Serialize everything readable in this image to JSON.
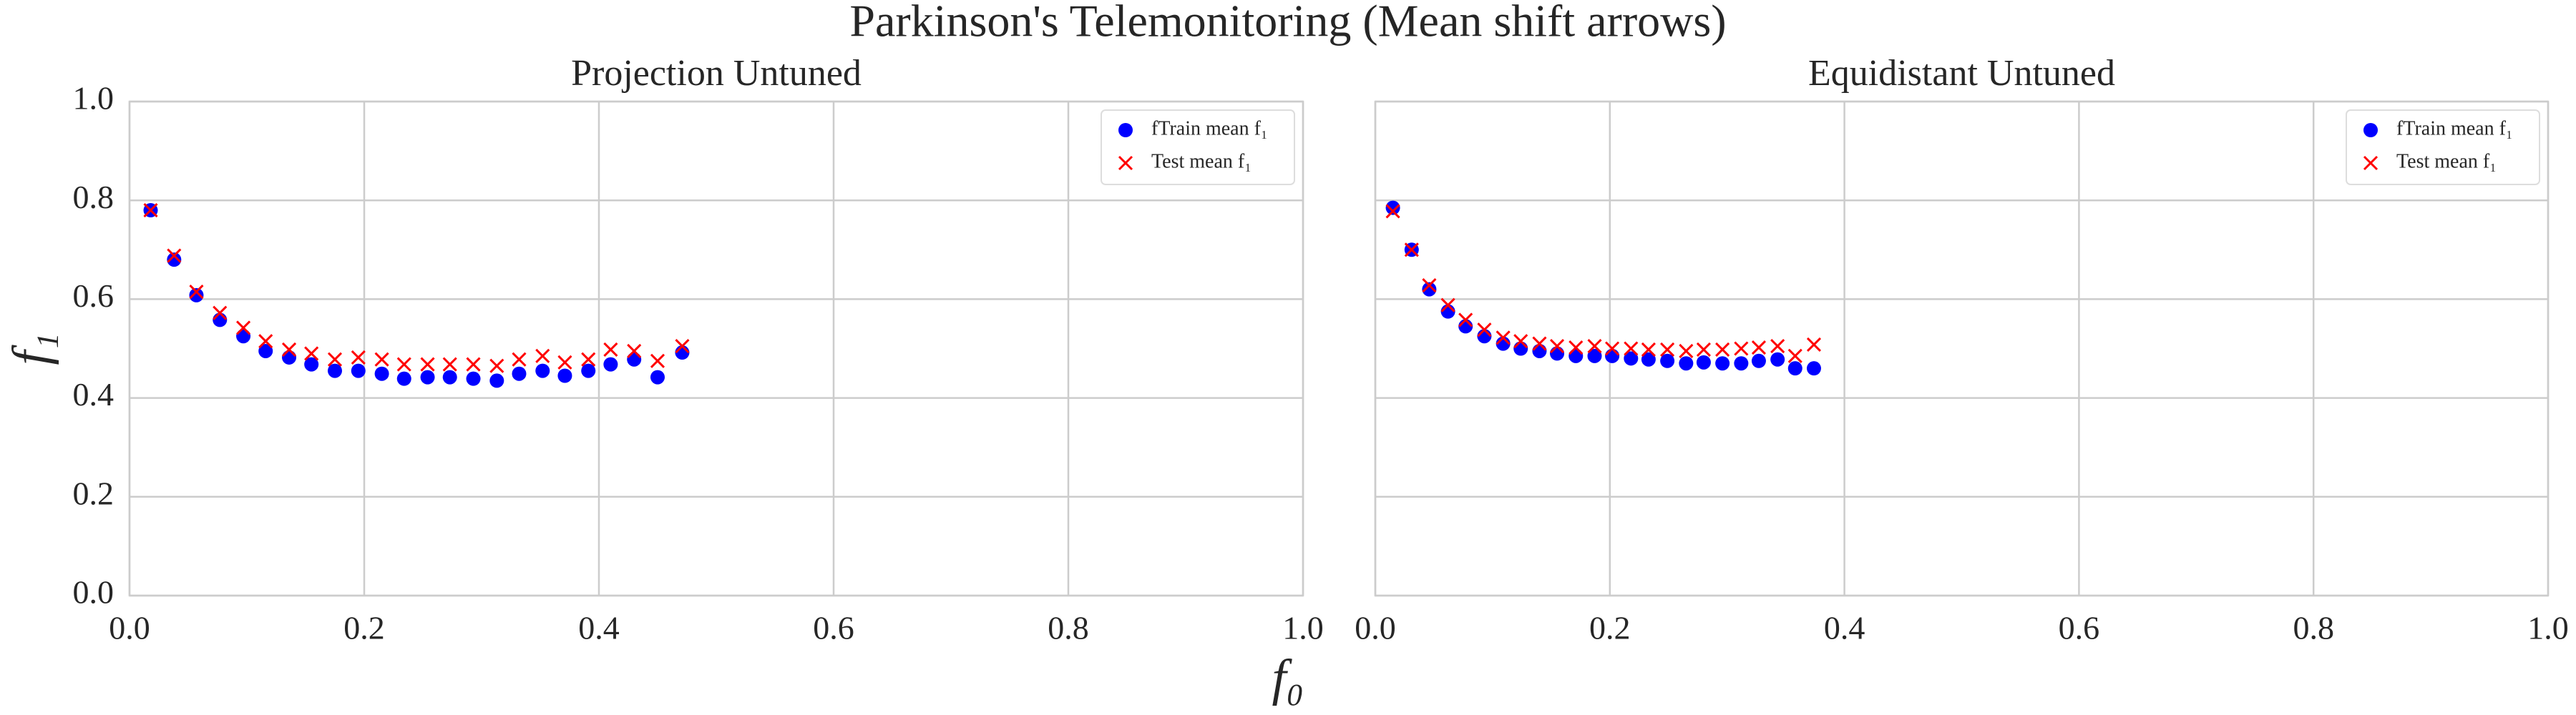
{
  "title": "Parkinson's Telemonitoring (Mean shift arrows)",
  "xlabel": "f₀",
  "ylabel": "f₁",
  "chart_data": [
    {
      "type": "scatter",
      "title": "Projection Untuned",
      "xlim": [
        0,
        1
      ],
      "ylim": [
        0,
        1
      ],
      "xticks": [
        {
          "value": 0,
          "label": "0.0"
        },
        0.2,
        0.4,
        0.6,
        0.8,
        {
          "value": 1,
          "label": "1.0"
        }
      ],
      "yticks": [
        {
          "value": 0,
          "label": "0.0"
        },
        0.2,
        0.4,
        0.6,
        0.8,
        {
          "value": 1,
          "label": "1.0"
        }
      ],
      "grid": true,
      "legend": "upper right",
      "x": [
        0.018,
        0.038,
        0.057,
        0.077,
        0.097,
        0.116,
        0.136,
        0.155,
        0.175,
        0.195,
        0.215,
        0.234,
        0.254,
        0.273,
        0.293,
        0.313,
        0.332,
        0.352,
        0.371,
        0.391,
        0.41,
        0.43,
        0.45,
        0.471
      ],
      "series": [
        {
          "name": "fTrain mean f₁",
          "color": "#0000ff",
          "marker": "o",
          "values": [
            0.78,
            0.68,
            0.608,
            0.558,
            0.525,
            0.495,
            0.482,
            0.468,
            0.455,
            0.455,
            0.449,
            0.439,
            0.442,
            0.442,
            0.439,
            0.435,
            0.449,
            0.455,
            0.445,
            0.455,
            0.468,
            0.478,
            0.442,
            0.492
          ]
        },
        {
          "name": "Test mean f₁",
          "color": "#ff0000",
          "marker": "x",
          "values": [
            0.78,
            0.688,
            0.615,
            0.572,
            0.542,
            0.515,
            0.498,
            0.49,
            0.478,
            0.482,
            0.478,
            0.468,
            0.468,
            0.468,
            0.468,
            0.465,
            0.478,
            0.485,
            0.472,
            0.478,
            0.498,
            0.495,
            0.475,
            0.505
          ]
        }
      ]
    },
    {
      "type": "scatter",
      "title": "Equidistant Untuned",
      "xlim": [
        0,
        1
      ],
      "ylim": [
        0,
        1
      ],
      "xticks": [
        {
          "value": 0,
          "label": "0.0"
        },
        0.2,
        0.4,
        0.6,
        0.8,
        {
          "value": 1,
          "label": "1.0"
        }
      ],
      "grid": true,
      "legend": "upper right",
      "x": [
        0.015,
        0.031,
        0.046,
        0.062,
        0.077,
        0.093,
        0.109,
        0.124,
        0.14,
        0.155,
        0.171,
        0.187,
        0.202,
        0.218,
        0.233,
        0.249,
        0.265,
        0.28,
        0.296,
        0.312,
        0.327,
        0.343,
        0.358,
        0.374
      ],
      "series": [
        {
          "name": "fTrain mean f₁",
          "color": "#0000ff",
          "marker": "o",
          "values": [
            0.785,
            0.7,
            0.62,
            0.575,
            0.545,
            0.525,
            0.51,
            0.5,
            0.495,
            0.49,
            0.485,
            0.485,
            0.485,
            0.48,
            0.478,
            0.475,
            0.47,
            0.472,
            0.47,
            0.47,
            0.475,
            0.478,
            0.46,
            0.46
          ]
        },
        {
          "name": "Test mean f₁",
          "color": "#ff0000",
          "marker": "x",
          "values": [
            0.778,
            0.7,
            0.628,
            0.588,
            0.558,
            0.538,
            0.522,
            0.515,
            0.51,
            0.505,
            0.502,
            0.505,
            0.5,
            0.5,
            0.498,
            0.498,
            0.495,
            0.498,
            0.498,
            0.5,
            0.502,
            0.505,
            0.485,
            0.508
          ]
        }
      ]
    }
  ]
}
